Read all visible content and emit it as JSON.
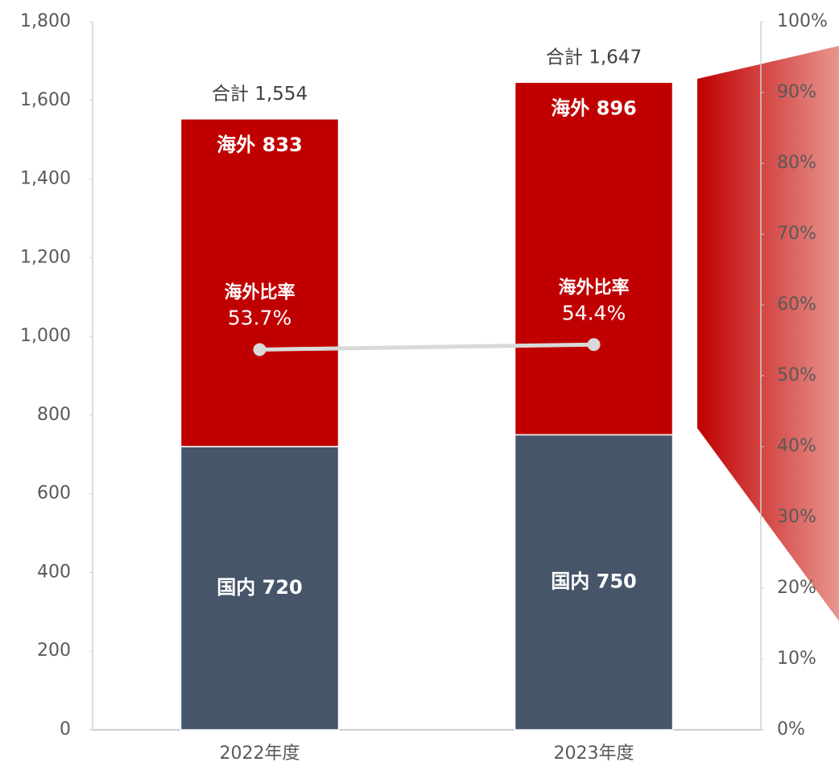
{
  "chart_data": {
    "type": "bar",
    "categories": [
      "2022年度",
      "2023年度"
    ],
    "series": [
      {
        "name": "国内",
        "color": "#465569",
        "values": [
          720,
          750
        ],
        "value_labels": [
          "国内 720",
          "国内 750"
        ]
      },
      {
        "name": "海外",
        "color": "#c00000",
        "values": [
          833,
          896
        ],
        "value_labels": [
          "海外 833",
          "海外 896"
        ]
      },
      {
        "name": "海外比率",
        "type": "line",
        "axis": "y2",
        "color": "#d9d9d9",
        "values": [
          53.7,
          54.4
        ],
        "value_labels": [
          "53.7%",
          "54.4%"
        ]
      }
    ],
    "totals": [
      1554,
      1647
    ],
    "total_labels": [
      "合計 1,554",
      "合計 1,647"
    ],
    "stacked": true,
    "ylim": [
      0,
      1800
    ],
    "yticks": [
      0,
      200,
      400,
      600,
      800,
      {
        "value": 1000,
        "label": "1,000"
      },
      {
        "value": 1200,
        "label": "1,200"
      },
      {
        "value": 1400,
        "label": "1,400"
      },
      {
        "value": 1600,
        "label": "1,600"
      },
      {
        "value": 1800,
        "label": "1,800"
      }
    ],
    "y2lim": [
      0,
      100
    ],
    "y2ticks": [
      {
        "value": 0,
        "label": "0%"
      },
      {
        "value": 10,
        "label": "10%"
      },
      {
        "value": 20,
        "label": "20%"
      },
      {
        "value": 30,
        "label": "30%"
      },
      {
        "value": 40,
        "label": "40%"
      },
      {
        "value": 50,
        "label": "50%"
      },
      {
        "value": 60,
        "label": "60%"
      },
      {
        "value": 70,
        "label": "70%"
      },
      {
        "value": 80,
        "label": "80%"
      },
      {
        "value": 90,
        "label": "90%"
      },
      {
        "value": 100,
        "label": "100%"
      }
    ],
    "grid": false
  }
}
